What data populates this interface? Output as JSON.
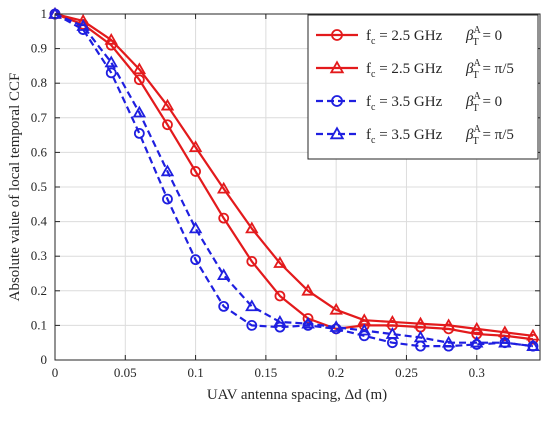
{
  "chart_data": {
    "type": "line",
    "xlabel": "UAV antenna spacing, Δd (m)",
    "ylabel": "Absolute value of local temporal CCF",
    "xlim": [
      0,
      0.345
    ],
    "ylim": [
      0,
      1
    ],
    "xticks": [
      0,
      0.05,
      0.1,
      0.15,
      0.2,
      0.25,
      0.3
    ],
    "xtick_labels": [
      "0",
      "0.05",
      "0.1",
      "0.15",
      "0.2",
      "0.25",
      "0.3"
    ],
    "yticks": [
      0,
      0.1,
      0.2,
      0.3,
      0.4,
      0.5,
      0.6,
      0.7,
      0.8,
      0.9,
      1
    ],
    "ytick_labels": [
      "0",
      "0.1",
      "0.2",
      "0.3",
      "0.4",
      "0.5",
      "0.6",
      "0.7",
      "0.8",
      "0.9",
      "1"
    ],
    "grid": true,
    "legend_position": "top-right",
    "x": [
      0,
      0.02,
      0.04,
      0.06,
      0.08,
      0.1,
      0.12,
      0.14,
      0.16,
      0.18,
      0.2,
      0.22,
      0.24,
      0.26,
      0.28,
      0.3,
      0.32,
      0.34
    ],
    "series": [
      {
        "legend": {
          "fc_value": "= 2.5 GHz",
          "beta_value": "= 0"
        },
        "color": "#e31a1c",
        "dash": "solid",
        "marker": "circle",
        "values": [
          1.0,
          0.97,
          0.91,
          0.81,
          0.68,
          0.545,
          0.41,
          0.285,
          0.185,
          0.12,
          0.09,
          0.1,
          0.1,
          0.095,
          0.09,
          0.075,
          0.07,
          0.06
        ]
      },
      {
        "legend": {
          "fc_value": "= 2.5 GHz",
          "beta_value": "= π/5"
        },
        "color": "#e31a1c",
        "dash": "solid",
        "marker": "triangle",
        "values": [
          1.0,
          0.98,
          0.925,
          0.84,
          0.735,
          0.615,
          0.495,
          0.38,
          0.28,
          0.2,
          0.145,
          0.115,
          0.11,
          0.105,
          0.1,
          0.09,
          0.08,
          0.07
        ]
      },
      {
        "legend": {
          "fc_value": "= 3.5 GHz",
          "beta_value": "= 0"
        },
        "color": "#1f1fe0",
        "dash": "dashed",
        "marker": "circle",
        "values": [
          1.0,
          0.955,
          0.83,
          0.655,
          0.465,
          0.29,
          0.155,
          0.1,
          0.095,
          0.1,
          0.09,
          0.07,
          0.05,
          0.04,
          0.04,
          0.045,
          0.05,
          0.04
        ]
      },
      {
        "legend": {
          "fc_value": "= 3.5 GHz",
          "beta_value": "= π/5"
        },
        "color": "#1f1fe0",
        "dash": "dashed",
        "marker": "triangle",
        "values": [
          1.0,
          0.965,
          0.86,
          0.715,
          0.545,
          0.38,
          0.245,
          0.155,
          0.11,
          0.105,
          0.095,
          0.085,
          0.075,
          0.065,
          0.05,
          0.05,
          0.05,
          0.04
        ]
      }
    ]
  },
  "legend_symbols": {
    "fc_main": "f",
    "fc_sub": "c",
    "beta_main": "β",
    "beta_sup": "A",
    "beta_sub": "T"
  }
}
